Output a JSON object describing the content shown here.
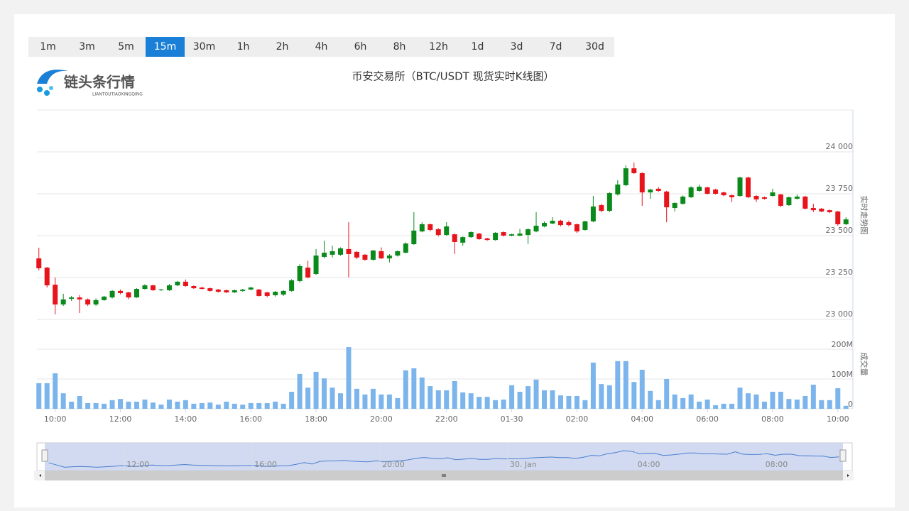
{
  "toolbar": {
    "intervals": [
      "1m",
      "3m",
      "5m",
      "15m",
      "30m",
      "1h",
      "2h",
      "4h",
      "6h",
      "8h",
      "12h",
      "1d",
      "3d",
      "7d",
      "30d"
    ],
    "active": "15m"
  },
  "logo": {
    "name": "链头条行情",
    "subtitle": "LIANTOUTIAOXINGQING"
  },
  "chart_data": {
    "type": "candlestick",
    "title": "币安交易所（BTC/USDT 现货实时K线图）",
    "y_title": "实时走势图",
    "categories": [
      "09:30",
      "09:45",
      "10:00",
      "10:15",
      "10:30",
      "10:45",
      "11:00",
      "11:15",
      "11:30",
      "11:45",
      "12:00",
      "12:15",
      "12:30",
      "12:45",
      "13:00",
      "13:15",
      "13:30",
      "13:45",
      "14:00",
      "14:15",
      "14:30",
      "14:45",
      "15:00",
      "15:15",
      "15:30",
      "15:45",
      "16:00",
      "16:15",
      "16:30",
      "16:45",
      "17:00",
      "17:15",
      "17:30",
      "17:45",
      "18:00",
      "18:15",
      "18:30",
      "18:45",
      "19:00",
      "19:15",
      "19:30",
      "19:45",
      "20:00",
      "20:15",
      "20:30",
      "20:45",
      "21:00",
      "21:15",
      "21:30",
      "21:45",
      "22:00",
      "22:15",
      "22:30",
      "22:45",
      "23:00",
      "23:15",
      "23:30",
      "23:45",
      "01-30",
      "00:15",
      "00:30",
      "00:45",
      "01:00",
      "01:15",
      "01:30",
      "01:45",
      "02:00",
      "02:15",
      "02:30",
      "02:45",
      "03:00",
      "03:15",
      "03:30",
      "03:45",
      "04:00",
      "04:15",
      "04:30",
      "04:45",
      "05:00",
      "05:15",
      "05:30",
      "05:45",
      "06:00",
      "06:15",
      "06:30",
      "06:45",
      "07:00",
      "07:15",
      "07:30",
      "07:45",
      "08:00",
      "08:15",
      "08:30",
      "08:45",
      "09:00",
      "09:15",
      "09:30",
      "09:45",
      "10:00",
      "10:15"
    ],
    "open": [
      23364,
      23309,
      23207,
      23089,
      23123,
      23131,
      23119,
      23089,
      23115,
      23131,
      23170,
      23161,
      23131,
      23182,
      23203,
      23174,
      23174,
      23203,
      23225,
      23199,
      23190,
      23186,
      23178,
      23174,
      23161,
      23170,
      23178,
      23178,
      23161,
      23144,
      23148,
      23170,
      23229,
      23309,
      23271,
      23373,
      23386,
      23386,
      23420,
      23403,
      23386,
      23356,
      23407,
      23364,
      23381,
      23398,
      23449,
      23525,
      23568,
      23538,
      23504,
      23508,
      23458,
      23491,
      23512,
      23483,
      23474,
      23521,
      23500,
      23500,
      23504,
      23525,
      23555,
      23572,
      23589,
      23580,
      23568,
      23534,
      23585,
      23682,
      23648,
      23746,
      23801,
      23902,
      23873,
      23758,
      23780,
      23763,
      23665,
      23690,
      23729,
      23767,
      23788,
      23775,
      23758,
      23741,
      23737,
      23847,
      23737,
      23729,
      23737,
      23746,
      23682,
      23720,
      23733,
      23665,
      23661,
      23652,
      23644,
      23568
    ],
    "high": [
      23428,
      23313,
      23250,
      23153,
      23140,
      23145,
      23125,
      23125,
      23140,
      23175,
      23178,
      23165,
      23186,
      23210,
      23208,
      23182,
      23212,
      23230,
      23238,
      23203,
      23195,
      23190,
      23182,
      23178,
      23178,
      23182,
      23195,
      23182,
      23165,
      23170,
      23174,
      23240,
      23330,
      23350,
      23420,
      23470,
      23440,
      23430,
      23580,
      23407,
      23390,
      23415,
      23430,
      23390,
      23411,
      23460,
      23640,
      23580,
      23572,
      23545,
      23580,
      23512,
      23495,
      23525,
      23517,
      23487,
      23521,
      23525,
      23512,
      23540,
      23545,
      23640,
      23585,
      23610,
      23595,
      23590,
      23572,
      23589,
      23737,
      23690,
      23760,
      23830,
      23920,
      23936,
      23878,
      23780,
      23790,
      23768,
      23700,
      23740,
      23795,
      23805,
      23792,
      23780,
      23763,
      23746,
      23852,
      23852,
      23742,
      23733,
      23780,
      23750,
      23733,
      23745,
      23738,
      23690,
      23665,
      23656,
      23648,
      23610
    ],
    "low": [
      23292,
      23190,
      23030,
      23080,
      23110,
      23038,
      23080,
      23080,
      23110,
      23125,
      23150,
      23120,
      23128,
      23178,
      23170,
      23170,
      23170,
      23199,
      23195,
      23182,
      23178,
      23165,
      23160,
      23157,
      23157,
      23165,
      23174,
      23136,
      23131,
      23136,
      23140,
      23165,
      23220,
      23245,
      23265,
      23365,
      23370,
      23380,
      23250,
      23360,
      23350,
      23350,
      23360,
      23340,
      23375,
      23394,
      23445,
      23520,
      23525,
      23495,
      23500,
      23390,
      23440,
      23487,
      23475,
      23470,
      23470,
      23495,
      23496,
      23496,
      23450,
      23520,
      23550,
      23568,
      23555,
      23555,
      23515,
      23530,
      23580,
      23640,
      23640,
      23740,
      23795,
      23868,
      23678,
      23720,
      23760,
      23580,
      23645,
      23685,
      23725,
      23762,
      23745,
      23745,
      23736,
      23700,
      23733,
      23724,
      23700,
      23715,
      23733,
      23670,
      23678,
      23716,
      23655,
      23640,
      23640,
      23635,
      23560,
      23564
    ],
    "close": [
      23305,
      23203,
      23089,
      23119,
      23131,
      23119,
      23089,
      23115,
      23136,
      23170,
      23157,
      23131,
      23182,
      23203,
      23174,
      23178,
      23203,
      23225,
      23199,
      23186,
      23182,
      23170,
      23165,
      23161,
      23174,
      23178,
      23190,
      23140,
      23140,
      23165,
      23170,
      23233,
      23318,
      23250,
      23381,
      23398,
      23407,
      23424,
      23390,
      23369,
      23356,
      23411,
      23364,
      23381,
      23407,
      23453,
      23530,
      23568,
      23534,
      23504,
      23555,
      23462,
      23491,
      23521,
      23479,
      23474,
      23517,
      23500,
      23508,
      23512,
      23538,
      23559,
      23576,
      23589,
      23563,
      23563,
      23525,
      23585,
      23674,
      23648,
      23754,
      23805,
      23902,
      23873,
      23758,
      23775,
      23767,
      23669,
      23695,
      23733,
      23788,
      23792,
      23750,
      23750,
      23741,
      23729,
      23847,
      23729,
      23716,
      23720,
      23758,
      23678,
      23729,
      23733,
      23661,
      23652,
      23644,
      23640,
      23568,
      23597
    ],
    "up_color": "#0a8a1a",
    "down_color": "#e8141c",
    "ylim": [
      23000,
      24250
    ],
    "yticks": [
      {
        "value": 23000,
        "label": "23 000"
      },
      {
        "value": 23250,
        "label": "23 250"
      },
      {
        "value": 23500,
        "label": "23 500"
      },
      {
        "value": 23750,
        "label": "23 750"
      },
      {
        "value": 24000,
        "label": "24 000"
      }
    ],
    "grid": true,
    "volume": {
      "name": "成交量",
      "color": "#7cb5ec",
      "ylim": [
        0,
        300000000
      ],
      "yticks": [
        0,
        {
          "value": 100000000,
          "label": "100M"
        },
        {
          "value": 200000000,
          "label": "200M"
        }
      ],
      "values": [
        86000000,
        86000000,
        119000000,
        52000000,
        24000000,
        43000000,
        19000000,
        19000000,
        17000000,
        29000000,
        33000000,
        24000000,
        24000000,
        31000000,
        21000000,
        14000000,
        31000000,
        24000000,
        29000000,
        17000000,
        19000000,
        21000000,
        14000000,
        24000000,
        17000000,
        14000000,
        19000000,
        19000000,
        19000000,
        24000000,
        17000000,
        57000000,
        117000000,
        71000000,
        124000000,
        102000000,
        71000000,
        52000000,
        207000000,
        67000000,
        48000000,
        67000000,
        48000000,
        48000000,
        36000000,
        129000000,
        136000000,
        105000000,
        76000000,
        62000000,
        62000000,
        93000000,
        55000000,
        52000000,
        40000000,
        40000000,
        29000000,
        31000000,
        79000000,
        57000000,
        76000000,
        98000000,
        62000000,
        62000000,
        45000000,
        43000000,
        43000000,
        29000000,
        155000000,
        83000000,
        79000000,
        160000000,
        160000000,
        90000000,
        131000000,
        60000000,
        29000000,
        100000000,
        48000000,
        36000000,
        48000000,
        24000000,
        31000000,
        12000000,
        17000000,
        17000000,
        71000000,
        52000000,
        48000000,
        24000000,
        57000000,
        57000000,
        33000000,
        31000000,
        43000000,
        81000000,
        29000000,
        29000000,
        69000000,
        10000000
      ]
    },
    "navigator": {
      "labels": [
        "12:00",
        "16:00",
        "20:00",
        "30. Jan",
        "04:00",
        "08:00"
      ]
    }
  }
}
